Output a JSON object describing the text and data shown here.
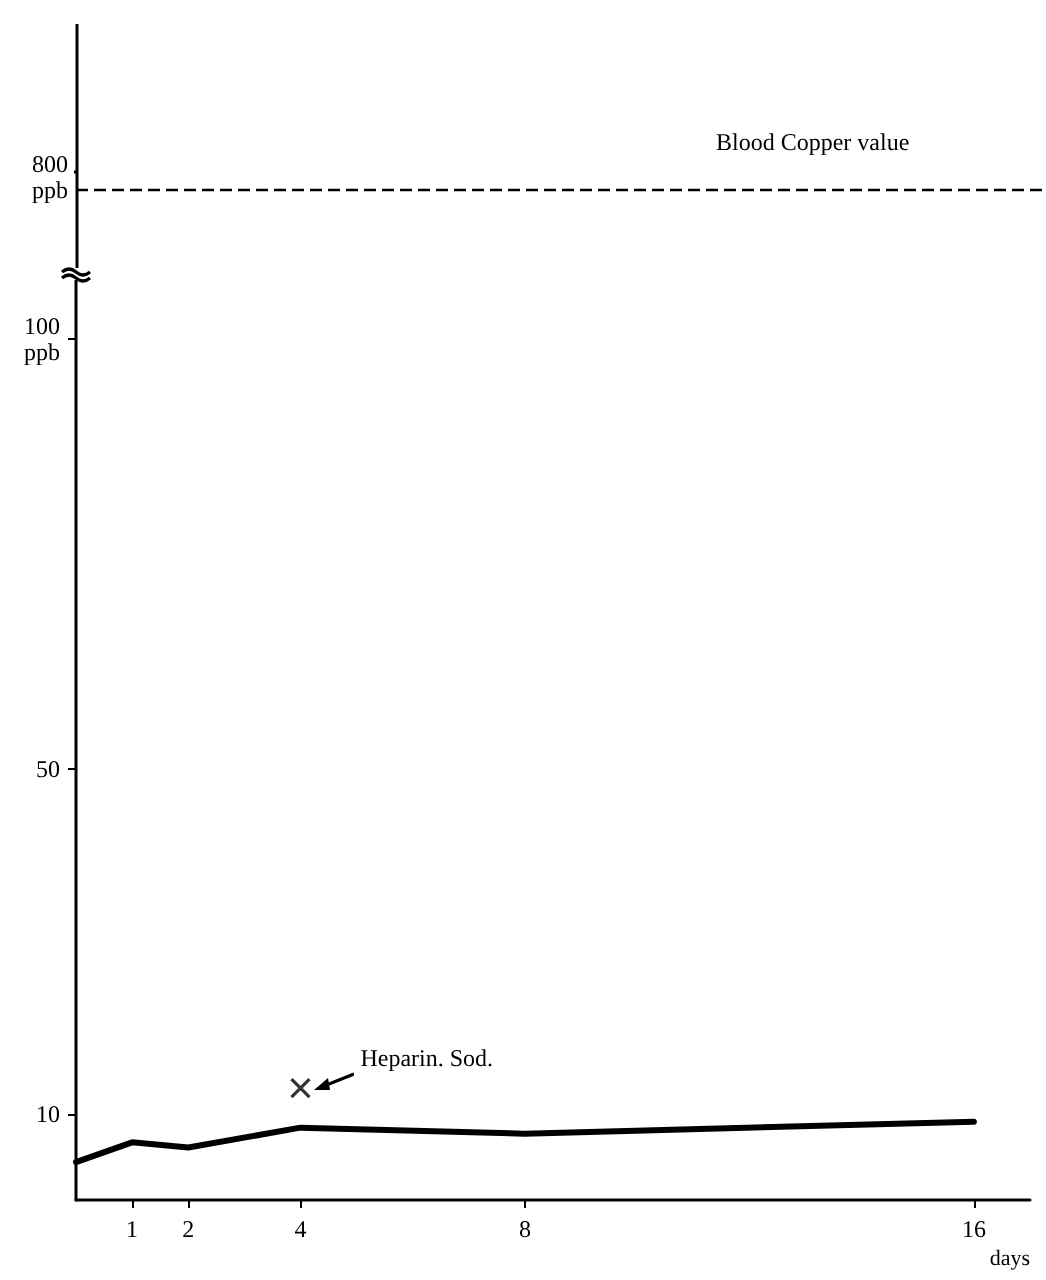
{
  "chart_data": [
    {
      "type": "other",
      "annotations": [
        "800\nppb",
        "Blood Copper value"
      ]
    },
    {
      "type": "line",
      "xlim": [
        0,
        17
      ],
      "ylim": [
        0,
        108
      ],
      "xticks": [
        1,
        2,
        4,
        8,
        16
      ],
      "yticks": [
        10,
        50,
        {
          "value": 100,
          "label": "100\nppb"
        }
      ],
      "xlabel": "days",
      "grid": false,
      "series": [
        {
          "type": "line",
          "color": "#000000",
          "x": [
            0,
            1,
            2,
            4,
            8,
            16
          ],
          "values": [
            4.4,
            6.7,
            6.1,
            8.4,
            7.7,
            9.1
          ],
          "marker": "none",
          "line_style": "solid"
        },
        {
          "type": "scatter",
          "color": "#000000",
          "x": [
            4
          ],
          "values": [
            13
          ],
          "marker": "cross"
        }
      ],
      "annotations": [
        {
          "text": "Heparin. Sod.",
          "x": 4,
          "y": 13
        }
      ]
    }
  ]
}
